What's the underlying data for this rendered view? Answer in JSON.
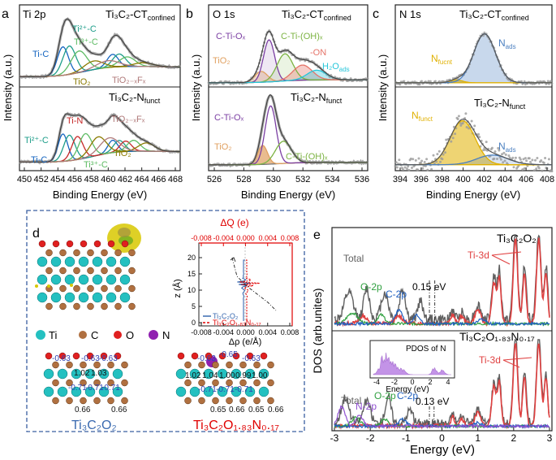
{
  "panels": {
    "a": {
      "letter": "a",
      "core_label": "Ti 2p",
      "top_title": "Ti₃C₂-CT",
      "top_title_sub": "confined",
      "bottom_title": "Ti₃C₂-N",
      "bottom_title_sub": "funct",
      "top_labels": [
        "Ti²⁺-C",
        "Ti³⁺-C",
        "Ti-C",
        "TiO₂",
        "TiO₂₋ₓFₓ"
      ],
      "bottom_labels": [
        "Ti-N",
        "TiO₂₋ₓFₓ",
        "Ti²⁺-C",
        "Ti-C",
        "Ti³⁺-C",
        "TiO₂"
      ],
      "xlabel": "Binding Energy (eV)",
      "ylabel": "Intensity (a.u.)",
      "xticks": [
        "450",
        "452",
        "454",
        "456",
        "458",
        "460",
        "462",
        "464",
        "466",
        "468"
      ]
    },
    "b": {
      "letter": "b",
      "core_label": "O 1s",
      "top_title": "Ti₃C₂-CT",
      "top_title_sub": "confined",
      "bottom_title": "Ti₃C₂-N",
      "bottom_title_sub": "funct",
      "top_labels": [
        "C-Ti-Oₓ",
        "C-Ti-(OH)ₓ",
        "-ON",
        "TiO₂",
        "H₂O",
        "ads"
      ],
      "bottom_labels": [
        "C-Ti-Oₓ",
        "TiO₂",
        "C-Ti-(OH)ₓ"
      ],
      "xlabel": "Binding Energy (eV)",
      "ylabel": "Intensity (a.u.)",
      "xticks": [
        "526",
        "528",
        "530",
        "532",
        "534",
        "536"
      ]
    },
    "c": {
      "letter": "c",
      "core_label": "N 1s",
      "top_title": "Ti₃C₂-CT",
      "top_title_sub": "confined",
      "bottom_title": "Ti₃C₂-N",
      "bottom_title_sub": "funct",
      "top_labels": [
        "N",
        "fucnt",
        "N",
        "ads"
      ],
      "bottom_labels": [
        "N",
        "funct",
        "N",
        "ads"
      ],
      "xlabel": "Binding Energy (eV)",
      "ylabel": "Intensity (a.u.)",
      "xticks": [
        "394",
        "396",
        "398",
        "400",
        "402",
        "404",
        "406",
        "408"
      ]
    },
    "d": {
      "letter": "d",
      "dq_label": "ΔQ (e)",
      "dq_ticks": [
        "-0.008",
        "-0.004",
        "0.000",
        "0.004",
        "0.008"
      ],
      "drho_label": "Δρ (e/Å)",
      "drho_ticks": [
        "-0.008",
        "-0.004",
        "0.000",
        "0.004",
        "0.008"
      ],
      "z_label": "z (Å)",
      "z_ticks": [
        "0",
        "5",
        "10",
        "15",
        "20"
      ],
      "legend_a": "Ti₃C₂O₂",
      "legend_b": "Ti₃C₂O₁.₈₃N₀.₁₇",
      "atoms_legend": [
        "Ti",
        "C",
        "O",
        "N"
      ],
      "left_struct_label": "Ti₃C₂O₂",
      "right_struct_label": "Ti₃C₂O₁.₈₃N₀.₁₇",
      "left_top_charges": [
        "-0.63",
        "-0.63",
        "-0.63"
      ],
      "left_mid_charges": [
        "1.02",
        "1.03"
      ],
      "left_low_charges": [
        "-0.71",
        "-0.71",
        "-0.71"
      ],
      "left_bottom_charges": [
        "0.66",
        "0.66"
      ],
      "right_top_charges": [
        "-0.63",
        "-0.65",
        "-0.63"
      ],
      "right_mid_charges": [
        "1.02",
        "1.04",
        "1.00",
        "0.99",
        "1.00"
      ],
      "right_low_charges": [
        "-0.71",
        "-0.71",
        "-0.71"
      ],
      "right_bottom_charges": [
        "0.65",
        "0.66",
        "0.65",
        "0.66"
      ]
    },
    "e": {
      "letter": "e",
      "ylabel": "DOS (arb.unites)",
      "xlabel": "Energy (eV)",
      "xticks": [
        "-3",
        "-2",
        "-1",
        "0",
        "1",
        "2",
        "3"
      ],
      "top_title": "Ti₃C₂O₂",
      "bottom_title": "Ti₃C₂O₁.₈₃N₀.₁₇",
      "top_labels": [
        "Total",
        "O-2p",
        "C-2p",
        "0.15 eV",
        "Ti-3d"
      ],
      "bottom_labels": [
        "Total",
        "N-2p",
        "O-2p",
        "C-2p",
        "0.13 eV",
        "Ti-3d"
      ],
      "inset_title": "PDOS of N",
      "inset_xlabel": "Energy (eV)",
      "inset_xticks": [
        "-4",
        "-2",
        "0",
        "2",
        "4"
      ]
    }
  },
  "colors": {
    "raw": "#9a9a9a",
    "envelope": "#444444",
    "tic": "#1565c0",
    "ti2c": "#1f9e8a",
    "ti3c": "#5dbb63",
    "tio2": "#8a7a00",
    "tiof": "#b07a7a",
    "tin": "#c62828",
    "ctiox": "#7b3fa3",
    "ctioh": "#7cb342",
    "on": "#e57368",
    "h2o": "#26c6da",
    "nads": "#4a7fc0",
    "nfunct": "#e0b000",
    "dq_red": "#e00000",
    "ti_atom": "#24c0c0",
    "c_atom": "#b07040",
    "o_atom": "#e02020",
    "n_atom": "#9020b0",
    "dashed_border": "#3a5fa0",
    "total_dos": "#606060",
    "ti3d": "#e04040",
    "o2p": "#30a040",
    "c2p": "#2060c0",
    "n2p": "#9050d0"
  },
  "chart_data": [
    {
      "type": "line",
      "title": "Ti 2p",
      "xlabel": "Binding Energy (eV)",
      "ylabel": "Intensity (a.u.)",
      "xlim": [
        450,
        469
      ],
      "series": [
        {
          "name": "Ti-C",
          "peaks": [
            [
              455.0,
              0.5
            ],
            [
              461.0,
              0.18
            ]
          ]
        },
        {
          "name": "Ti²⁺-C",
          "peaks": [
            [
              455.8,
              0.55
            ],
            [
              461.6,
              0.25
            ]
          ]
        },
        {
          "name": "Ti³⁺-C",
          "peaks": [
            [
              457.0,
              0.45
            ],
            [
              462.5,
              0.2
            ]
          ]
        },
        {
          "name": "TiO₂",
          "peaks": [
            [
              458.8,
              0.22
            ],
            [
              464.5,
              0.12
            ]
          ]
        }
      ]
    },
    {
      "type": "line",
      "title": "O 1s",
      "xlabel": "Binding Energy (eV)",
      "ylabel": "Intensity (a.u.)",
      "xlim": [
        526,
        537
      ],
      "series": [
        {
          "name": "C-Ti-Oₓ",
          "peaks": [
            [
              530.3,
              1.0
            ]
          ]
        },
        {
          "name": "TiO₂",
          "peaks": [
            [
              529.7,
              0.25
            ]
          ]
        },
        {
          "name": "C-Ti-(OH)ₓ",
          "peaks": [
            [
              531.3,
              0.55
            ]
          ]
        },
        {
          "name": "-ON",
          "peaks": [
            [
              532.4,
              0.3
            ]
          ]
        },
        {
          "name": "H₂O",
          "peaks": [
            [
              533.4,
              0.22
            ]
          ]
        }
      ]
    },
    {
      "type": "line",
      "title": "N 1s",
      "xlabel": "Binding Energy (eV)",
      "ylabel": "Intensity (a.u.)",
      "xlim": [
        394,
        408
      ],
      "series": [
        {
          "name": "N",
          "peaks": [
            [
              402.0,
              1.0
            ]
          ]
        },
        {
          "name": "N",
          "peaks": [
            [
              399.8,
              1.0
            ]
          ]
        }
      ]
    },
    {
      "type": "line",
      "title": "ΔQ (e)",
      "xlabel": "Δρ (e/Å)",
      "ylabel": "z (Å)",
      "xlim": [
        -0.008,
        0.008
      ],
      "ylim": [
        0,
        23
      ],
      "series": [
        {
          "name": "Ti₃C₂O₂"
        },
        {
          "name": "Ti₃C₂O₁.₈₃N₀.₁₇"
        }
      ]
    },
    {
      "type": "line",
      "title": "Ti₃C₂O₂",
      "xlabel": "Energy (eV)",
      "ylabel": "DOS (arb.unites)",
      "xlim": [
        -3,
        3
      ],
      "series": [
        {
          "name": "Total"
        },
        {
          "name": "Ti-3d"
        },
        {
          "name": "O-2p"
        },
        {
          "name": "C-2p"
        }
      ]
    },
    {
      "type": "line",
      "title": "Ti₃C₂O₁.₈₃N₀.₁₇",
      "xlabel": "Energy (eV)",
      "ylabel": "DOS (arb.unites)",
      "xlim": [
        -3,
        3
      ],
      "series": [
        {
          "name": "Total"
        },
        {
          "name": "Ti-3d"
        },
        {
          "name": "O-2p"
        },
        {
          "name": "C-2p"
        },
        {
          "name": "N-2p"
        }
      ]
    }
  ]
}
